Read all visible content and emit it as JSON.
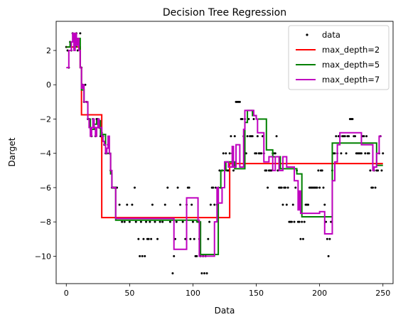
{
  "chart_data": {
    "type": "scatter+step",
    "title": "Decision Tree Regression",
    "xlabel": "Data",
    "ylabel": "Darget",
    "xlim": [
      -8,
      258
    ],
    "ylim": [
      -11.6,
      3.7
    ],
    "xticks": [
      0,
      50,
      100,
      150,
      200,
      250
    ],
    "yticks": [
      2,
      0,
      -2,
      -4,
      -6,
      -8,
      -10
    ],
    "legend": {
      "position": "top-right",
      "entries": [
        {
          "label": "data",
          "kind": "marker",
          "color": "#000000"
        },
        {
          "label": "max_depth=2",
          "kind": "line",
          "color": "#ff0000"
        },
        {
          "label": "max_depth=5",
          "kind": "line",
          "color": "#008000"
        },
        {
          "label": "max_depth=7",
          "kind": "line",
          "color": "#bf00bf"
        }
      ]
    },
    "scatter": {
      "name": "data",
      "color": "#000000",
      "points": [
        [
          0,
          2.2
        ],
        [
          1,
          2
        ],
        [
          2,
          1
        ],
        [
          3,
          2.5
        ],
        [
          4,
          2
        ],
        [
          5,
          3
        ],
        [
          6,
          2.2
        ],
        [
          7,
          2.8
        ],
        [
          8,
          3
        ],
        [
          9,
          2
        ],
        [
          10,
          2.5
        ],
        [
          11,
          3
        ],
        [
          12,
          1
        ],
        [
          13,
          0
        ],
        [
          14,
          -1
        ],
        [
          15,
          0
        ],
        [
          16,
          -1
        ],
        [
          17,
          -2
        ],
        [
          18,
          -2
        ],
        [
          19,
          -2.5
        ],
        [
          20,
          -3
        ],
        [
          21,
          -2
        ],
        [
          22,
          -2.5
        ],
        [
          23,
          -3
        ],
        [
          24,
          -2
        ],
        [
          25,
          -2
        ],
        [
          26,
          -2.5
        ],
        [
          27,
          -3
        ],
        [
          28,
          -2.8
        ],
        [
          29,
          -3
        ],
        [
          30,
          -3.5
        ],
        [
          31,
          -4
        ],
        [
          32,
          -4
        ],
        [
          33,
          -3.5
        ],
        [
          34,
          -4
        ],
        [
          35,
          -5
        ],
        [
          36,
          -6
        ],
        [
          37,
          -6
        ],
        [
          38,
          -6
        ],
        [
          39,
          -6
        ],
        [
          40,
          -6
        ],
        [
          42,
          -7
        ],
        [
          44,
          -8
        ],
        [
          46,
          -8
        ],
        [
          48,
          -7
        ],
        [
          50,
          -8
        ],
        [
          52,
          -7
        ],
        [
          54,
          -6
        ],
        [
          55,
          -8
        ],
        [
          57,
          -9
        ],
        [
          58,
          -10
        ],
        [
          59,
          -8
        ],
        [
          60,
          -10
        ],
        [
          61,
          -9
        ],
        [
          62,
          -10
        ],
        [
          63,
          -8
        ],
        [
          64,
          -9
        ],
        [
          65,
          -9
        ],
        [
          66,
          -8
        ],
        [
          67,
          -9
        ],
        [
          68,
          -7
        ],
        [
          70,
          -8
        ],
        [
          72,
          -9
        ],
        [
          74,
          -8
        ],
        [
          76,
          -8
        ],
        [
          78,
          -7
        ],
        [
          80,
          -6
        ],
        [
          82,
          -8
        ],
        [
          84,
          -11
        ],
        [
          85,
          -10
        ],
        [
          86,
          -9
        ],
        [
          87,
          -8
        ],
        [
          88,
          -6
        ],
        [
          90,
          -7
        ],
        [
          92,
          -8
        ],
        [
          94,
          -9
        ],
        [
          95,
          -7
        ],
        [
          96,
          -6
        ],
        [
          97,
          -6
        ],
        [
          98,
          -9
        ],
        [
          99,
          -7
        ],
        [
          100,
          -8
        ],
        [
          101,
          -9
        ],
        [
          102,
          -10
        ],
        [
          103,
          -10
        ],
        [
          104,
          -8
        ],
        [
          105,
          -9
        ],
        [
          106,
          -10
        ],
        [
          107,
          -11
        ],
        [
          108,
          -10
        ],
        [
          109,
          -11
        ],
        [
          110,
          -10
        ],
        [
          111,
          -11
        ],
        [
          112,
          -9
        ],
        [
          113,
          -8
        ],
        [
          114,
          -7
        ],
        [
          115,
          -6
        ],
        [
          116,
          -6
        ],
        [
          117,
          -7
        ],
        [
          118,
          -6
        ],
        [
          119,
          -7
        ],
        [
          120,
          -6
        ],
        [
          121,
          -5
        ],
        [
          122,
          -6
        ],
        [
          123,
          -5
        ],
        [
          124,
          -4
        ],
        [
          125,
          -5
        ],
        [
          126,
          -4
        ],
        [
          127,
          -5
        ],
        [
          128,
          -5
        ],
        [
          129,
          -4
        ],
        [
          130,
          -3
        ],
        [
          131,
          -4
        ],
        [
          132,
          -5
        ],
        [
          133,
          -3
        ],
        [
          134,
          -1
        ],
        [
          135,
          -1
        ],
        [
          136,
          -1
        ],
        [
          137,
          -1
        ],
        [
          138,
          -2
        ],
        [
          139,
          -2
        ],
        [
          140,
          -3
        ],
        [
          141,
          -2
        ],
        [
          142,
          -4
        ],
        [
          143,
          -3
        ],
        [
          144,
          -2
        ],
        [
          145,
          -3
        ],
        [
          146,
          -3
        ],
        [
          147,
          -3
        ],
        [
          148,
          -2
        ],
        [
          149,
          -4
        ],
        [
          150,
          -4
        ],
        [
          151,
          -3
        ],
        [
          152,
          -4
        ],
        [
          153,
          -4
        ],
        [
          154,
          -4
        ],
        [
          155,
          -3
        ],
        [
          156,
          -4
        ],
        [
          157,
          -5
        ],
        [
          158,
          -5
        ],
        [
          159,
          -6
        ],
        [
          160,
          -5
        ],
        [
          161,
          -5
        ],
        [
          162,
          -5
        ],
        [
          163,
          -4
        ],
        [
          164,
          -4
        ],
        [
          165,
          -4
        ],
        [
          166,
          -3
        ],
        [
          167,
          -5
        ],
        [
          168,
          -6
        ],
        [
          169,
          -6
        ],
        [
          170,
          -6
        ],
        [
          171,
          -7
        ],
        [
          172,
          -6
        ],
        [
          173,
          -6
        ],
        [
          174,
          -7
        ],
        [
          175,
          -6
        ],
        [
          176,
          -8
        ],
        [
          177,
          -8
        ],
        [
          178,
          -8
        ],
        [
          179,
          -7
        ],
        [
          180,
          -8
        ],
        [
          181,
          -6
        ],
        [
          182,
          -5
        ],
        [
          183,
          -8
        ],
        [
          184,
          -8
        ],
        [
          185,
          -9
        ],
        [
          186,
          -8
        ],
        [
          187,
          -9
        ],
        [
          188,
          -8
        ],
        [
          189,
          -7
        ],
        [
          190,
          -7
        ],
        [
          191,
          -7
        ],
        [
          192,
          -6
        ],
        [
          193,
          -6
        ],
        [
          194,
          -6
        ],
        [
          195,
          -6
        ],
        [
          196,
          -6
        ],
        [
          197,
          -6
        ],
        [
          198,
          -6
        ],
        [
          199,
          -5
        ],
        [
          200,
          -6
        ],
        [
          201,
          -5
        ],
        [
          202,
          -5
        ],
        [
          203,
          -6
        ],
        [
          204,
          -7
        ],
        [
          205,
          -8
        ],
        [
          206,
          -9
        ],
        [
          207,
          -10
        ],
        [
          208,
          -9
        ],
        [
          209,
          -8
        ],
        [
          210,
          -5
        ],
        [
          211,
          -4
        ],
        [
          212,
          -4
        ],
        [
          213,
          -3
        ],
        [
          214,
          -4
        ],
        [
          215,
          -3
        ],
        [
          216,
          -3
        ],
        [
          217,
          -4
        ],
        [
          218,
          -3
        ],
        [
          219,
          -3
        ],
        [
          220,
          -3
        ],
        [
          221,
          -4
        ],
        [
          222,
          -3
        ],
        [
          223,
          -3
        ],
        [
          224,
          -2
        ],
        [
          225,
          -2
        ],
        [
          226,
          -2
        ],
        [
          227,
          -3
        ],
        [
          228,
          -3
        ],
        [
          229,
          -4
        ],
        [
          230,
          -4
        ],
        [
          231,
          -4
        ],
        [
          232,
          -4
        ],
        [
          233,
          -4
        ],
        [
          234,
          -3
        ],
        [
          235,
          -3
        ],
        [
          236,
          -4
        ],
        [
          237,
          -3
        ],
        [
          238,
          -4
        ],
        [
          239,
          -4
        ],
        [
          240,
          -5
        ],
        [
          241,
          -6
        ],
        [
          242,
          -6
        ],
        [
          243,
          -5
        ],
        [
          244,
          -6
        ],
        [
          245,
          -5
        ],
        [
          246,
          -5
        ],
        [
          247,
          -4
        ],
        [
          248,
          -3
        ],
        [
          249,
          -5
        ],
        [
          250,
          -4
        ]
      ]
    },
    "series": [
      {
        "name": "max_depth=2",
        "color": "#ff0000",
        "steps": [
          [
            0,
            2.2
          ],
          [
            11,
            1.0
          ],
          [
            12,
            -1.75
          ],
          [
            28,
            -7.75
          ],
          [
            129,
            -4.6
          ],
          [
            250,
            -4.6
          ]
        ]
      },
      {
        "name": "max_depth=5",
        "color": "#008000",
        "steps": [
          [
            0,
            2.2
          ],
          [
            3,
            2.5
          ],
          [
            6,
            2.2
          ],
          [
            8,
            2.7
          ],
          [
            11,
            1.0
          ],
          [
            12,
            -0.3
          ],
          [
            14,
            -1.0
          ],
          [
            17,
            -2.0
          ],
          [
            19,
            -2.6
          ],
          [
            22,
            -2.3
          ],
          [
            24,
            -2.1
          ],
          [
            27,
            -2.9
          ],
          [
            31,
            -4.0
          ],
          [
            35,
            -5.2
          ],
          [
            36,
            -6.0
          ],
          [
            39,
            -7.9
          ],
          [
            103,
            -8.0
          ],
          [
            106,
            -9.9
          ],
          [
            120,
            -6.0
          ],
          [
            122,
            -5.0
          ],
          [
            126,
            -4.5
          ],
          [
            133,
            -4.9
          ],
          [
            141,
            -2.2
          ],
          [
            143,
            -1.5
          ],
          [
            147,
            -1.8
          ],
          [
            150,
            -2.0
          ],
          [
            158,
            -3.8
          ],
          [
            163,
            -4.2
          ],
          [
            169,
            -4.9
          ],
          [
            182,
            -5.2
          ],
          [
            186,
            -7.7
          ],
          [
            210,
            -3.4
          ],
          [
            245,
            -4.7
          ],
          [
            250,
            -4.7
          ]
        ]
      },
      {
        "name": "max_depth=7",
        "color": "#bf00bf",
        "steps": [
          [
            0,
            1.0
          ],
          [
            2,
            2.0
          ],
          [
            4,
            2.5
          ],
          [
            5,
            3.0
          ],
          [
            6,
            2.0
          ],
          [
            7,
            3.0
          ],
          [
            8,
            2.3
          ],
          [
            9,
            2.7
          ],
          [
            10,
            2.0
          ],
          [
            11,
            1.0
          ],
          [
            12,
            -0.2
          ],
          [
            13,
            0.0
          ],
          [
            14,
            -1.0
          ],
          [
            15,
            -1.0
          ],
          [
            17,
            -2.0
          ],
          [
            18,
            -2.5
          ],
          [
            19,
            -3.0
          ],
          [
            20,
            -2.5
          ],
          [
            21,
            -2.0
          ],
          [
            22,
            -2.5
          ],
          [
            23,
            -3.0
          ],
          [
            24,
            -2.5
          ],
          [
            25,
            -2.0
          ],
          [
            26,
            -2.5
          ],
          [
            28,
            -3.0
          ],
          [
            29,
            -3.3
          ],
          [
            30,
            -3.5
          ],
          [
            31,
            -4.0
          ],
          [
            32,
            -3.7
          ],
          [
            33,
            -3.0
          ],
          [
            34,
            -4.0
          ],
          [
            35,
            -5.0
          ],
          [
            36,
            -6.0
          ],
          [
            39,
            -7.8
          ],
          [
            85,
            -9.6
          ],
          [
            95,
            -6.6
          ],
          [
            104,
            -7.9
          ],
          [
            105,
            -10.0
          ],
          [
            117,
            -8.0
          ],
          [
            119,
            -6.0
          ],
          [
            120,
            -6.9
          ],
          [
            123,
            -6.0
          ],
          [
            125,
            -4.5
          ],
          [
            128,
            -4.8
          ],
          [
            131,
            -3.6
          ],
          [
            132,
            -4.8
          ],
          [
            134,
            -3.5
          ],
          [
            137,
            -4.8
          ],
          [
            140,
            -2.6
          ],
          [
            141,
            -1.5
          ],
          [
            148,
            -1.8
          ],
          [
            150,
            -2.0
          ],
          [
            151,
            -2.8
          ],
          [
            156,
            -4.5
          ],
          [
            160,
            -4.2
          ],
          [
            163,
            -5.0
          ],
          [
            165,
            -4.2
          ],
          [
            168,
            -5.0
          ],
          [
            171,
            -4.2
          ],
          [
            174,
            -4.8
          ],
          [
            180,
            -5.6
          ],
          [
            183,
            -7.3
          ],
          [
            184,
            -6.2
          ],
          [
            185,
            -7.5
          ],
          [
            200,
            -7.4
          ],
          [
            204,
            -8.7
          ],
          [
            210,
            -5.6
          ],
          [
            212,
            -4.5
          ],
          [
            214,
            -3.5
          ],
          [
            216,
            -2.8
          ],
          [
            233,
            -3.5
          ],
          [
            242,
            -5.0
          ],
          [
            243,
            -4.8
          ],
          [
            245,
            -4.0
          ],
          [
            247,
            -3.0
          ],
          [
            249,
            -3.0
          ]
        ]
      }
    ]
  }
}
